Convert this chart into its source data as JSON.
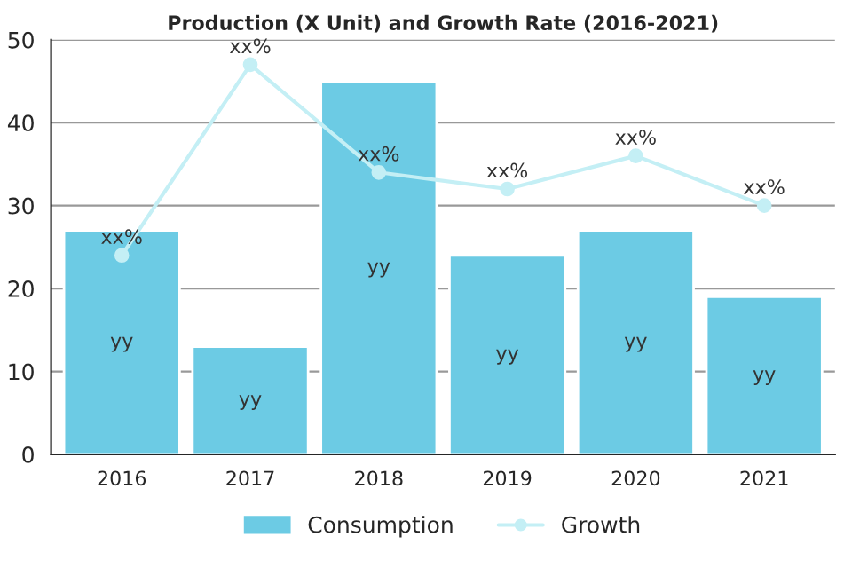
{
  "chart_data": {
    "type": "bar",
    "title": "Production (X Unit) and Growth Rate (2016-2021)",
    "categories": [
      "2016",
      "2017",
      "2018",
      "2019",
      "2020",
      "2021"
    ],
    "series": [
      {
        "name": "Consumption",
        "color": "#6ccbe4",
        "values": [
          27,
          13,
          45,
          24,
          27,
          19
        ],
        "value_labels": [
          "yy",
          "yy",
          "yy",
          "yy",
          "yy",
          "yy"
        ]
      },
      {
        "name": "Growth",
        "type": "line",
        "color": "#c4eff5",
        "marker": "circle",
        "values": [
          24,
          47,
          34,
          32,
          36,
          30
        ],
        "value_labels": [
          "xx%",
          "xx%",
          "xx%",
          "xx%",
          "xx%",
          "xx%"
        ]
      }
    ],
    "ylim": [
      0,
      50
    ],
    "yticks": [
      0,
      10,
      20,
      30,
      40,
      50
    ],
    "grid": "y",
    "legend": "bottom"
  }
}
